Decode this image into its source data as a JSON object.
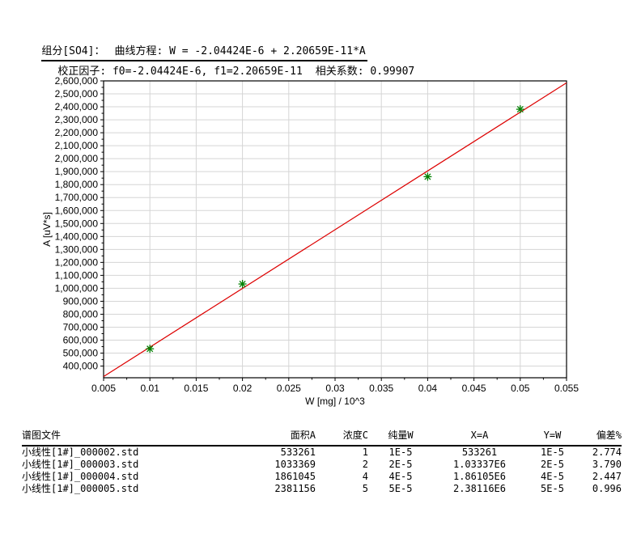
{
  "page": {
    "background": "#ffffff"
  },
  "header": {
    "component": "组分[SO4]：",
    "equation": "曲线方程: W = -2.04424E-6 + 2.20659E-11*A",
    "factors": "校正因子: f0=-2.04424E-6, f1=2.20659E-11",
    "correlation": "相关系数: 0.99907"
  },
  "chart_data": {
    "type": "scatter",
    "title": "",
    "xlabel": "W [mg] / 10^3",
    "ylabel": "A [uV*s]",
    "xlim": [
      0.005,
      0.055
    ],
    "ylim": [
      310000,
      2600000
    ],
    "x_ticks": [
      0.005,
      0.01,
      0.015,
      0.02,
      0.025,
      0.03,
      0.035,
      0.04,
      0.045,
      0.05,
      0.055
    ],
    "y_ticks": [
      400000,
      500000,
      600000,
      700000,
      800000,
      900000,
      1000000,
      1100000,
      1200000,
      1300000,
      1400000,
      1500000,
      1600000,
      1700000,
      1800000,
      1900000,
      2000000,
      2100000,
      2200000,
      2300000,
      2400000,
      2500000,
      2600000
    ],
    "grid": true,
    "points": [
      {
        "x": 0.01,
        "y": 533261
      },
      {
        "x": 0.02,
        "y": 1033369
      },
      {
        "x": 0.04,
        "y": 1861045
      },
      {
        "x": 0.05,
        "y": 2381156
      }
    ],
    "fit_line": {
      "equation": "W = -2.04424E-6 + 2.20659E-11*A",
      "f0": -2.04424e-06,
      "f1": 2.20659e-11,
      "x1": 0.005,
      "y1": 319236,
      "x2": 0.055,
      "y2": 2585162
    },
    "colors": {
      "line": "#dd0000",
      "marker": "#008000",
      "grid": "#d5d5d5",
      "axis": "#000000"
    }
  },
  "table": {
    "headers": [
      "谱图文件",
      "面积A",
      "浓度C",
      "纯量W",
      "X=A",
      "Y=W",
      "偏差%"
    ],
    "rows": [
      [
        "小线性[1#]_000002.std",
        "533261",
        "1",
        "1E-5",
        "533261",
        "1E-5",
        "2.774"
      ],
      [
        "小线性[1#]_000003.std",
        "1033369",
        "2",
        "2E-5",
        "1.03337E6",
        "2E-5",
        "3.790"
      ],
      [
        "小线性[1#]_000004.std",
        "1861045",
        "4",
        "4E-5",
        "1.86105E6",
        "4E-5",
        "2.447"
      ],
      [
        "小线性[1#]_000005.std",
        "2381156",
        "5",
        "5E-5",
        "2.38116E6",
        "5E-5",
        "0.996"
      ]
    ]
  }
}
